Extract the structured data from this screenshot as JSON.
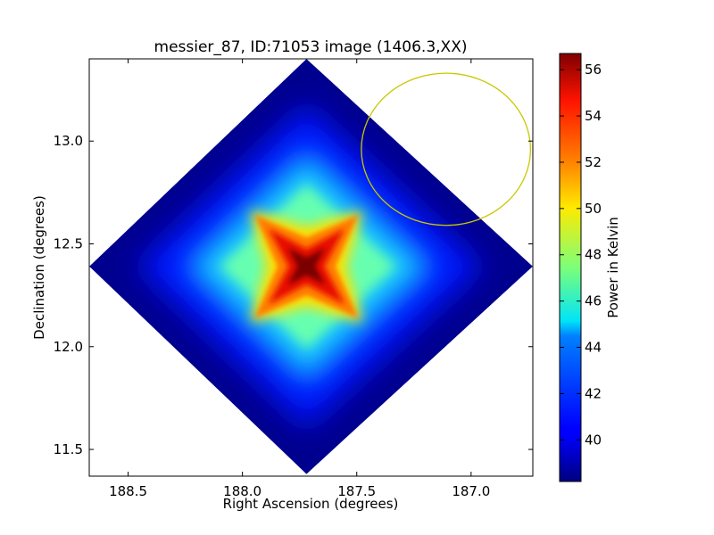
{
  "chart_data": {
    "type": "heatmap",
    "title": "messier_87, ID:71053 image (1406.3,XX)",
    "xlabel": "Right Ascension (degrees)",
    "ylabel": "Declination (degrees)",
    "x_axis_reversed": true,
    "xlim": [
      188.67,
      186.73
    ],
    "ylim": [
      11.37,
      13.4
    ],
    "x_ticks": [
      {
        "value": 188.5,
        "label": "188.5"
      },
      {
        "value": 188.0,
        "label": "188.0"
      },
      {
        "value": 187.5,
        "label": "187.5"
      },
      {
        "value": 187.0,
        "label": "187.0"
      }
    ],
    "y_ticks": [
      {
        "value": 11.5,
        "label": "11.5"
      },
      {
        "value": 12.0,
        "label": "12.0"
      },
      {
        "value": 12.5,
        "label": "12.5"
      },
      {
        "value": 13.0,
        "label": "13.0"
      }
    ],
    "colorbar": {
      "label": "Power in Kelvin",
      "min": 38.2,
      "max": 56.7,
      "colormap": "jet",
      "ticks": [
        {
          "value": 40,
          "label": "40"
        },
        {
          "value": 42,
          "label": "42"
        },
        {
          "value": 44,
          "label": "44"
        },
        {
          "value": 46,
          "label": "46"
        },
        {
          "value": 48,
          "label": "48"
        },
        {
          "value": 50,
          "label": "50"
        },
        {
          "value": 52,
          "label": "52"
        },
        {
          "value": 54,
          "label": "54"
        },
        {
          "value": 56,
          "label": "56"
        }
      ]
    },
    "map": {
      "center": {
        "ra": 187.72,
        "dec": 12.39
      },
      "diamond_vertices": [
        {
          "ra": 187.72,
          "dec": 13.4
        },
        {
          "ra": 186.73,
          "dec": 12.39
        },
        {
          "ra": 187.72,
          "dec": 11.38
        },
        {
          "ra": 188.67,
          "dec": 12.39
        }
      ],
      "peak_value": 56.7,
      "background_value": 38.5
    },
    "circle_marker": {
      "ra_center": 187.11,
      "dec_center": 12.96,
      "ra_radius": 0.37,
      "dec_radius": 0.37,
      "color": "#c8c800"
    },
    "grid": false
  }
}
